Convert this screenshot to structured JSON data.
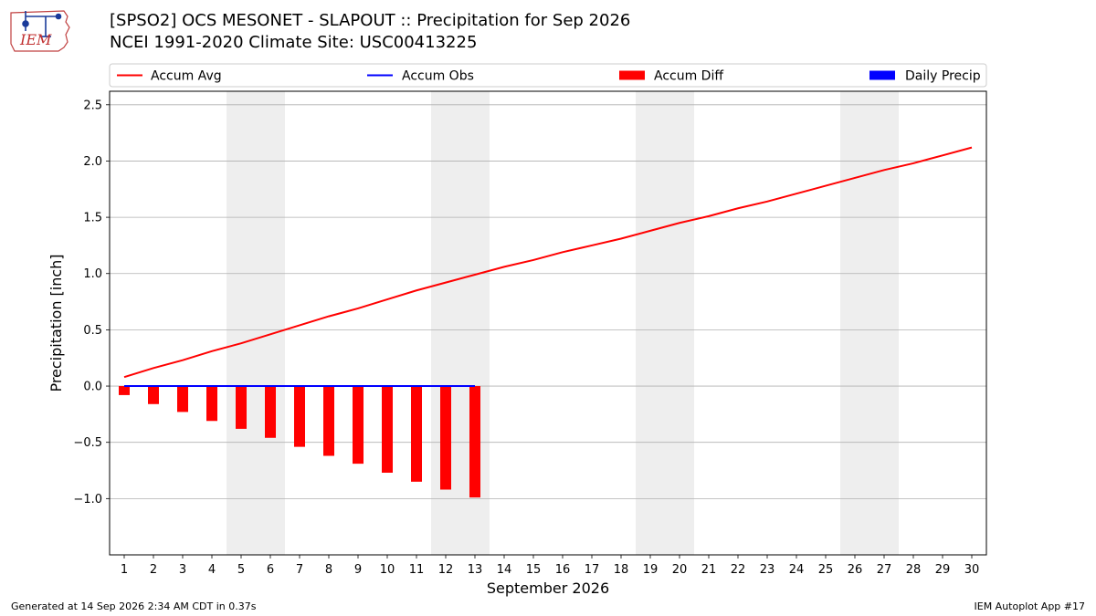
{
  "header": {
    "title_line1": "[SPSO2] OCS MESONET - SLAPOUT :: Precipitation for Sep 2026",
    "title_line2": "NCEI 1991-2020 Climate Site: USC00413225",
    "logo_text": "IEM"
  },
  "footer": {
    "generated": "Generated at 14 Sep 2026 2:34 AM CDT in 0.37s",
    "app": "IEM Autoplot App #17"
  },
  "colors": {
    "accum_avg": "#ff0000",
    "accum_obs": "#0000ff",
    "accum_diff": "#ff0000",
    "daily_precip": "#0000ff",
    "weekend_shade": "#eeeeee",
    "grid": "#b0b0b0"
  },
  "chart_data": {
    "type": "line",
    "xlabel": "September 2026",
    "ylabel": "Precipitation [inch]",
    "xlim": [
      0.5,
      30.5
    ],
    "ylim": [
      -1.5,
      2.62
    ],
    "yticks": [
      -1.0,
      -0.5,
      0.0,
      0.5,
      1.0,
      1.5,
      2.0,
      2.5
    ],
    "ytick_labels": [
      "−1.0",
      "−0.5",
      "0.0",
      "0.5",
      "1.0",
      "1.5",
      "2.0",
      "2.5"
    ],
    "x": [
      1,
      2,
      3,
      4,
      5,
      6,
      7,
      8,
      9,
      10,
      11,
      12,
      13,
      14,
      15,
      16,
      17,
      18,
      19,
      20,
      21,
      22,
      23,
      24,
      25,
      26,
      27,
      28,
      29,
      30
    ],
    "xtick_labels": [
      "1",
      "2",
      "3",
      "4",
      "5",
      "6",
      "7",
      "8",
      "9",
      "10",
      "11",
      "12",
      "13",
      "14",
      "15",
      "16",
      "17",
      "18",
      "19",
      "20",
      "21",
      "22",
      "23",
      "24",
      "25",
      "26",
      "27",
      "28",
      "29",
      "30"
    ],
    "grid": "y",
    "legend": {
      "placement": "top",
      "entries": [
        {
          "label": "Accum Avg",
          "kind": "line",
          "color": "#ff0000"
        },
        {
          "label": "Accum Obs",
          "kind": "line",
          "color": "#0000ff"
        },
        {
          "label": "Accum Diff",
          "kind": "bar",
          "color": "#ff0000"
        },
        {
          "label": "Daily Precip",
          "kind": "bar",
          "color": "#0000ff"
        }
      ]
    },
    "weekend_spans": [
      [
        4.5,
        6.5
      ],
      [
        11.5,
        13.5
      ],
      [
        18.5,
        20.5
      ],
      [
        25.5,
        27.5
      ]
    ],
    "series": [
      {
        "name": "Accum Avg",
        "kind": "line",
        "x": [
          1,
          2,
          3,
          4,
          5,
          6,
          7,
          8,
          9,
          10,
          11,
          12,
          13,
          14,
          15,
          16,
          17,
          18,
          19,
          20,
          21,
          22,
          23,
          24,
          25,
          26,
          27,
          28,
          29,
          30
        ],
        "values": [
          0.08,
          0.16,
          0.23,
          0.31,
          0.38,
          0.46,
          0.54,
          0.62,
          0.69,
          0.77,
          0.85,
          0.92,
          0.99,
          1.06,
          1.12,
          1.19,
          1.25,
          1.31,
          1.38,
          1.45,
          1.51,
          1.58,
          1.64,
          1.71,
          1.78,
          1.85,
          1.92,
          1.98,
          2.05,
          2.12
        ]
      },
      {
        "name": "Accum Obs",
        "kind": "line",
        "x": [
          1,
          2,
          3,
          4,
          5,
          6,
          7,
          8,
          9,
          10,
          11,
          12,
          13
        ],
        "values": [
          0,
          0,
          0,
          0,
          0,
          0,
          0,
          0,
          0,
          0,
          0,
          0,
          0
        ]
      },
      {
        "name": "Accum Diff",
        "kind": "bar",
        "x": [
          1,
          2,
          3,
          4,
          5,
          6,
          7,
          8,
          9,
          10,
          11,
          12,
          13
        ],
        "values": [
          -0.08,
          -0.16,
          -0.23,
          -0.31,
          -0.38,
          -0.46,
          -0.54,
          -0.62,
          -0.69,
          -0.77,
          -0.85,
          -0.92,
          -0.99
        ]
      },
      {
        "name": "Daily Precip",
        "kind": "bar",
        "x": [
          1,
          2,
          3,
          4,
          5,
          6,
          7,
          8,
          9,
          10,
          11,
          12,
          13
        ],
        "values": [
          0,
          0,
          0,
          0,
          0,
          0,
          0,
          0,
          0,
          0,
          0,
          0,
          0
        ]
      }
    ]
  }
}
